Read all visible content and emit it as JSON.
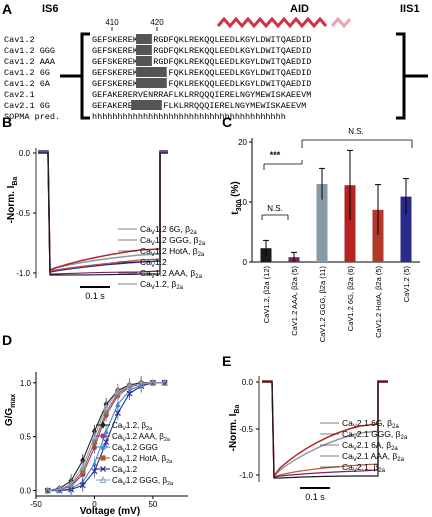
{
  "panels": {
    "A": {
      "label": "A",
      "header": {
        "is6": "IS6",
        "aid": "AID",
        "iis1": "IIS1",
        "pos410": "410",
        "pos420": "420"
      },
      "rows": [
        {
          "name": "Cav1.2",
          "pre": "GEFSKEREK",
          "hl": "AKA",
          "post": "RGDFQKLREKQQLEEDLKGYLDWITQAEDID"
        },
        {
          "name": "Cav1.2 GGG",
          "pre": "GEFSKEREK",
          "hl": "GGG",
          "post": "RGDFQKLREKQQLEEDLKGYLDWITQAEDID"
        },
        {
          "name": "Cav1.2 AAA",
          "pre": "GEFSKEREK",
          "hl": "AAA",
          "post": "RGDFQKLREKQQLEEDLKGYLDWITQAEDID"
        },
        {
          "name": "Cav1.2 6G",
          "pre": "GEFSKEREK",
          "hl": "GGGGGG",
          "post": "FQKLREKQQLEEDLKGYLDWITQAEDID"
        },
        {
          "name": "Cav1.2 6A",
          "pre": "GEFSKEREK",
          "hl": "AAAAAA",
          "post": "FQKLREKQQLEEDLKGYLDWITQAEDID"
        },
        {
          "name": "Cav2.1",
          "pre": "GEFAKERERVENRRAFLKLRRQQQIERELNGYMEWISKAEEVM",
          "hl": "",
          "post": ""
        },
        {
          "name": "Cav2.1 6G",
          "pre": "GEFAKERE",
          "hl": "GGGGGG",
          "post": "FLKLRRQQQIERELNGYMEWISKAEEVM"
        }
      ],
      "sopma_label": "SOPMA pred.",
      "sopma_seq": "hhhhhhhhhhhhhhhhhhhhhhhhhhhhhhhhhhhhhh"
    },
    "B": {
      "label": "B",
      "ylabel_main": "-Norm. I",
      "ylabel_sub": "Ba",
      "ticks": [
        "0.0",
        "-0.5",
        "-1.0"
      ],
      "scalebar": "0.1 s",
      "legend": [
        {
          "main": "Ca",
          "sub": "V",
          "rest": "1.2 6G, β",
          "sub2": "2a"
        },
        {
          "main": "Ca",
          "sub": "V",
          "rest": "1.2 GGG, β",
          "sub2": "2a"
        },
        {
          "main": "Ca",
          "sub": "V",
          "rest": "1.2 HotA, β",
          "sub2": "2a"
        },
        {
          "main": "Ca",
          "sub": "V",
          "rest": "1.2",
          "sub2": ""
        },
        {
          "main": "Ca",
          "sub": "V",
          "rest": "1.2 AAA, β",
          "sub2": "2a"
        },
        {
          "main": "Ca",
          "sub": "V",
          "rest": "1.2, β",
          "sub2": "2a"
        }
      ]
    },
    "C": {
      "label": "C",
      "ylabel": "t",
      "ylabel_sub": "300",
      "ylabel_unit": " (%)",
      "sig_star": "***",
      "ns1": "N.S.",
      "ns2": "N.S."
    },
    "D": {
      "label": "D",
      "ylabel": "G/G",
      "ylabel_sub": "max",
      "xlabel": "Voltage (mV)",
      "legend": [
        {
          "text": "Ca",
          "sub": "V",
          "rest": "1.2, β",
          "sub2": "2a",
          "color": "#222222",
          "marker": "diamond"
        },
        {
          "text": "Ca",
          "sub": "V",
          "rest": "1.2 AAA, β",
          "sub2": "2a",
          "color": "#9b3a7a",
          "marker": "circle"
        },
        {
          "text": "Ca",
          "sub": "V",
          "rest": "1.2 GGG",
          "sub2": "",
          "color": "#3a8ed0",
          "marker": "triangle"
        },
        {
          "text": "Ca",
          "sub": "V",
          "rest": "1.2 HotA, β",
          "sub2": "2a",
          "color": "#a0622a",
          "marker": "square"
        },
        {
          "text": "Ca",
          "sub": "V",
          "rest": "1.2",
          "sub2": "",
          "color": "#2a2a8a",
          "marker": "x"
        },
        {
          "text": "Ca",
          "sub": "V",
          "rest": "1.2 GGG, β",
          "sub2": "2a",
          "color": "#8aa0c0",
          "marker": "triangle-open"
        }
      ]
    },
    "E": {
      "label": "E",
      "ylabel_main": "-Norm. I",
      "ylabel_sub": "Ba",
      "ticks": [
        "0.0",
        "-0.5",
        "-1.0"
      ],
      "scalebar": "0.1 s",
      "legend": [
        {
          "main": "Ca",
          "sub": "V",
          "rest": "2.1 6G, β",
          "sub2": "2a"
        },
        {
          "main": "Ca",
          "sub": "V",
          "rest": "2.1 GGG, β",
          "sub2": "2a"
        },
        {
          "main": "Ca",
          "sub": "V",
          "rest": "2.1 6A, β",
          "sub2": "2a"
        },
        {
          "main": "Ca",
          "sub": "V",
          "rest": "2.1 AAA, β",
          "sub2": "2a"
        },
        {
          "main": "Ca",
          "sub": "V",
          "rest": "2.1, β",
          "sub2": "2a"
        }
      ]
    }
  },
  "chart_data": [
    {
      "type": "bar",
      "panel": "C",
      "categories": [
        "CaV1.2, β2a (12)",
        "CaV1.2 AAA, β2a (5)",
        "CaV1.2 GGG, β2a (11)",
        "CaV1.2 6G, β2a (6)",
        "CaV1.2 HotA, β2a (5)",
        "CaV1.2 (5)"
      ],
      "values": [
        2.3,
        0.8,
        13.0,
        12.8,
        8.7,
        10.9
      ],
      "errors": [
        1.3,
        0.8,
        2.6,
        5.8,
        4.2,
        3.0
      ],
      "colors": [
        "#1a1a1a",
        "#7a1f6a",
        "#8a9aa4",
        "#b52222",
        "#b33a2a",
        "#2a2a8a"
      ],
      "ylabel": "t300 (%)",
      "ylim": [
        0,
        20
      ],
      "yticks": [
        0,
        10,
        20
      ]
    },
    {
      "type": "line",
      "panel": "D",
      "xlabel": "Voltage (mV)",
      "ylabel": "G/Gmax",
      "xlim": [
        -50,
        80
      ],
      "ylim": [
        -0.05,
        1.1
      ],
      "xticks": [
        -50,
        0,
        50
      ],
      "yticks": [
        0.0,
        0.5,
        1.0
      ],
      "x": [
        -40,
        -30,
        -20,
        -10,
        0,
        10,
        20,
        30,
        40,
        50,
        60
      ],
      "series": [
        {
          "name": "CaV1.2, β2a",
          "values": [
            0.0,
            0.02,
            0.09,
            0.28,
            0.55,
            0.8,
            0.93,
            0.98,
            1.0,
            1.0,
            1.0
          ]
        },
        {
          "name": "CaV1.2 AAA, β2a",
          "values": [
            0.0,
            0.01,
            0.04,
            0.15,
            0.4,
            0.7,
            0.88,
            0.96,
            0.99,
            1.0,
            1.0
          ]
        },
        {
          "name": "CaV1.2 GGG",
          "values": [
            0.0,
            0.0,
            0.02,
            0.08,
            0.25,
            0.55,
            0.8,
            0.93,
            0.98,
            1.0,
            1.0
          ]
        },
        {
          "name": "CaV1.2 HotA, β2a",
          "values": [
            0.0,
            0.01,
            0.05,
            0.18,
            0.45,
            0.73,
            0.9,
            0.97,
            0.99,
            1.0,
            1.0
          ]
        },
        {
          "name": "CaV1.2",
          "values": [
            0.0,
            0.0,
            0.01,
            0.05,
            0.18,
            0.45,
            0.72,
            0.9,
            0.97,
            1.0,
            1.0
          ]
        },
        {
          "name": "CaV1.2 GGG, β2a",
          "values": [
            0.0,
            0.01,
            0.06,
            0.22,
            0.5,
            0.77,
            0.92,
            0.97,
            0.99,
            1.0,
            1.0
          ]
        }
      ],
      "colors": [
        "#222222",
        "#9b3a7a",
        "#3a8ed0",
        "#a0622a",
        "#2a2a8a",
        "#8aa0c0"
      ]
    }
  ]
}
